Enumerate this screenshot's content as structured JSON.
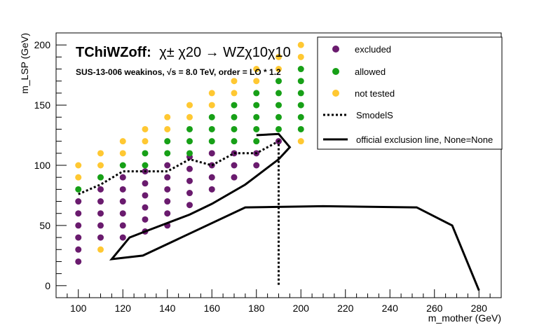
{
  "chart_data": {
    "type": "scatter",
    "title_prefix": "TChiWZoff:",
    "title_particles": "χ± χ20 → WZχ10χ10",
    "subtitle": "SUS-13-006  weakinos,  √s =  8.0 TeV, order =  LO * 1.2",
    "xlabel": "m_mother (GeV)",
    "ylabel": "m_LSP (GeV)",
    "xlim": [
      90,
      290
    ],
    "ylim": [
      -10,
      210
    ],
    "x_ticks": [
      100,
      120,
      140,
      160,
      180,
      200,
      220,
      240,
      260,
      280
    ],
    "y_ticks": [
      0,
      50,
      100,
      150,
      200
    ],
    "legend_placement": "top-right",
    "colors": {
      "excluded": "#6a1b6e",
      "allowed": "#17a017",
      "not_tested": "#ffc832",
      "lines": "#000000"
    },
    "series": [
      {
        "name": "excluded",
        "points": [
          [
            100,
            20
          ],
          [
            100,
            30
          ],
          [
            100,
            40
          ],
          [
            100,
            50
          ],
          [
            100,
            60
          ],
          [
            100,
            70
          ],
          [
            110,
            40
          ],
          [
            110,
            50
          ],
          [
            110,
            60
          ],
          [
            110,
            70
          ],
          [
            110,
            80
          ],
          [
            120,
            40
          ],
          [
            120,
            50
          ],
          [
            120,
            60
          ],
          [
            120,
            70
          ],
          [
            120,
            80
          ],
          [
            120,
            90
          ],
          [
            130,
            45
          ],
          [
            130,
            55
          ],
          [
            130,
            65
          ],
          [
            130,
            75
          ],
          [
            130,
            85
          ],
          [
            130,
            95
          ],
          [
            140,
            50
          ],
          [
            140,
            60
          ],
          [
            140,
            70
          ],
          [
            140,
            80
          ],
          [
            140,
            90
          ],
          [
            140,
            100
          ],
          [
            150,
            67
          ],
          [
            150,
            77
          ],
          [
            150,
            87
          ],
          [
            150,
            97
          ],
          [
            150,
            107
          ],
          [
            160,
            80
          ],
          [
            160,
            90
          ],
          [
            160,
            100
          ],
          [
            160,
            110
          ],
          [
            170,
            90
          ],
          [
            170,
            100
          ],
          [
            170,
            110
          ],
          [
            180,
            100
          ],
          [
            180,
            110
          ],
          [
            190,
            120
          ]
        ]
      },
      {
        "name": "allowed",
        "points": [
          [
            100,
            80
          ],
          [
            110,
            90
          ],
          [
            120,
            100
          ],
          [
            130,
            100
          ],
          [
            130,
            110
          ],
          [
            140,
            110
          ],
          [
            140,
            120
          ],
          [
            150,
            110
          ],
          [
            150,
            120
          ],
          [
            150,
            130
          ],
          [
            160,
            120
          ],
          [
            160,
            130
          ],
          [
            160,
            140
          ],
          [
            170,
            120
          ],
          [
            170,
            130
          ],
          [
            170,
            140
          ],
          [
            170,
            150
          ],
          [
            180,
            120
          ],
          [
            180,
            130
          ],
          [
            180,
            140
          ],
          [
            180,
            150
          ],
          [
            180,
            160
          ],
          [
            190,
            130
          ],
          [
            190,
            140
          ],
          [
            190,
            150
          ],
          [
            190,
            160
          ],
          [
            190,
            170
          ],
          [
            200,
            130
          ],
          [
            200,
            140
          ],
          [
            200,
            150
          ],
          [
            200,
            160
          ],
          [
            200,
            170
          ],
          [
            200,
            180
          ]
        ]
      },
      {
        "name": "not tested",
        "points": [
          [
            100,
            90
          ],
          [
            100,
            100
          ],
          [
            110,
            30
          ],
          [
            110,
            100
          ],
          [
            110,
            110
          ],
          [
            120,
            110
          ],
          [
            120,
            120
          ],
          [
            130,
            120
          ],
          [
            130,
            130
          ],
          [
            140,
            130
          ],
          [
            140,
            140
          ],
          [
            150,
            140
          ],
          [
            150,
            150
          ],
          [
            160,
            150
          ],
          [
            160,
            160
          ],
          [
            170,
            160
          ],
          [
            170,
            170
          ],
          [
            180,
            170
          ],
          [
            180,
            180
          ],
          [
            190,
            180
          ],
          [
            190,
            190
          ],
          [
            200,
            120
          ],
          [
            200,
            190
          ],
          [
            200,
            200
          ]
        ]
      }
    ],
    "lines": [
      {
        "name": "SmodelS",
        "style": "dotted",
        "points": [
          [
            100,
            76
          ],
          [
            110,
            84
          ],
          [
            120,
            95
          ],
          [
            130,
            95
          ],
          [
            140,
            95
          ],
          [
            150,
            105
          ],
          [
            160,
            100
          ],
          [
            170,
            110
          ],
          [
            180,
            110
          ],
          [
            190,
            120
          ],
          [
            190,
            0
          ]
        ]
      },
      {
        "name": "official exclusion line, None=None",
        "style": "solid",
        "points": [
          [
            180,
            125
          ],
          [
            190,
            126
          ],
          [
            195,
            115
          ],
          [
            190,
            105
          ],
          [
            175,
            84
          ],
          [
            160,
            68
          ],
          [
            150,
            59
          ],
          [
            130,
            45
          ],
          [
            123,
            40
          ],
          [
            115,
            22
          ],
          [
            129,
            25
          ],
          [
            175,
            65
          ],
          [
            210,
            66
          ],
          [
            252,
            65
          ],
          [
            268,
            50
          ],
          [
            280,
            -4
          ]
        ]
      }
    ],
    "legend": [
      {
        "label": "excluded",
        "marker": "dot",
        "series": "excluded"
      },
      {
        "label": "allowed",
        "marker": "dot",
        "series": "allowed"
      },
      {
        "label": "not tested",
        "marker": "dot",
        "series": "not tested"
      },
      {
        "label": "SmodelS",
        "marker": "dotted-line"
      },
      {
        "label": "official exclusion line, None=None",
        "marker": "solid-line"
      }
    ]
  }
}
